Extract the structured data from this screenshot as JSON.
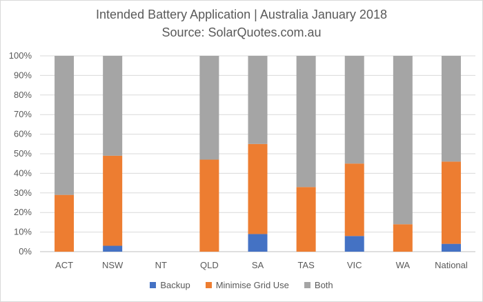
{
  "chart_data": {
    "type": "bar",
    "stacked": true,
    "title": "Intended Battery Application | Australia January 2018",
    "subtitle": "Source: SolarQuotes.com.au",
    "categories": [
      "ACT",
      "NSW",
      "NT",
      "QLD",
      "SA",
      "TAS",
      "VIC",
      "WA",
      "National"
    ],
    "series": [
      {
        "name": "Backup",
        "color": "#4472C4",
        "values": [
          0,
          3,
          0,
          0,
          9,
          0,
          8,
          0,
          4
        ]
      },
      {
        "name": "Minimise Grid Use",
        "color": "#ED7D31",
        "values": [
          29,
          46,
          0,
          47,
          46,
          33,
          37,
          14,
          42
        ]
      },
      {
        "name": "Both",
        "color": "#A5A5A5",
        "values": [
          71,
          51,
          0,
          53,
          45,
          67,
          55,
          86,
          54
        ]
      }
    ],
    "ylim": [
      0,
      100
    ],
    "yticks": [
      "0%",
      "10%",
      "20%",
      "30%",
      "40%",
      "50%",
      "60%",
      "70%",
      "80%",
      "90%",
      "100%"
    ],
    "grid": true,
    "legend_position": "bottom"
  }
}
